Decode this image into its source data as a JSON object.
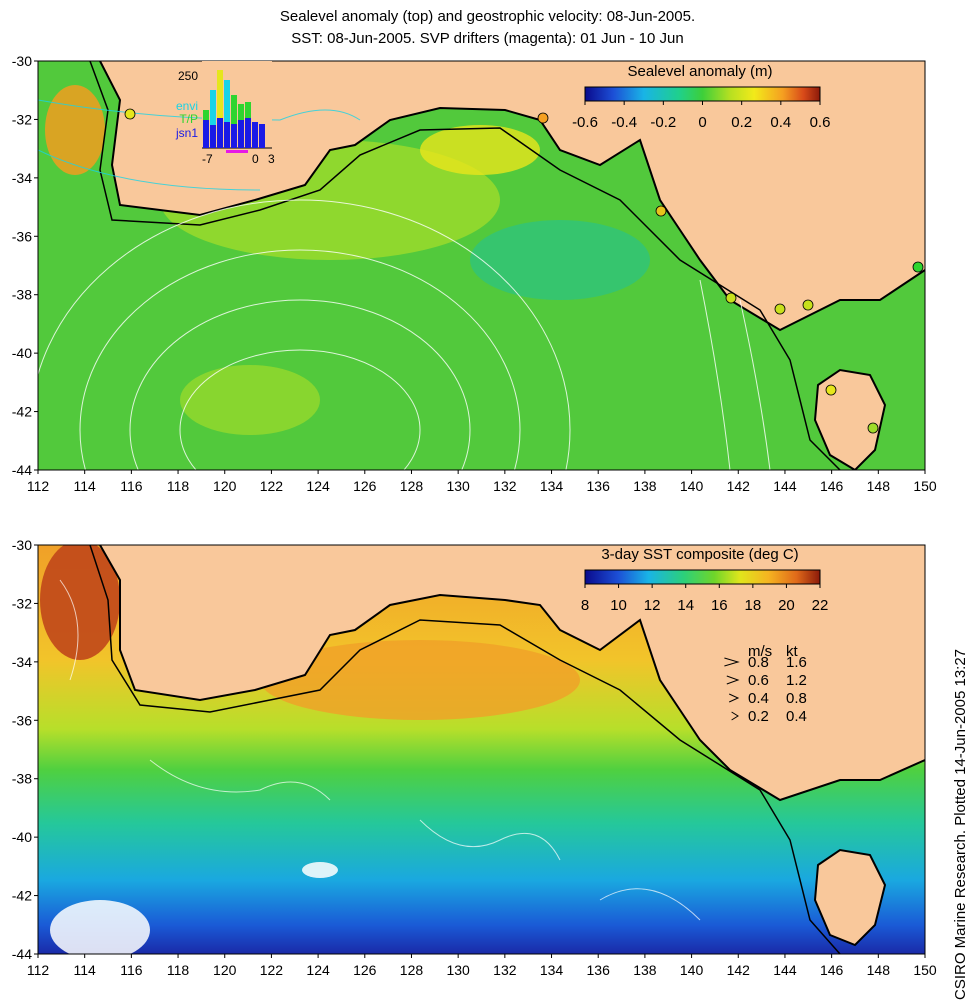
{
  "header": {
    "title_line1": "Sealevel anomaly (top) and geostrophic velocity: 08-Jun-2005.",
    "title_line2": "SST: 08-Jun-2005. SVP drifters (magenta): 01 Jun - 10 Jun"
  },
  "credit": "CSIRO Marine Research. Plotted 14-Jun-2005 13:27",
  "colors": {
    "land": "#f9c89b",
    "coast": "#000000",
    "ocean_mid": "#5ccf3a",
    "contour": "#ffffff"
  },
  "top_panel": {
    "colorbar_title": "Sealevel anomaly (m)",
    "colorbar_ticks": [
      "-0.6",
      "-0.4",
      "-0.2",
      "0",
      "0.2",
      "0.4",
      "0.6"
    ],
    "lat_ticks": [
      "-30",
      "-32",
      "-34",
      "-36",
      "-38",
      "-40",
      "-42",
      "-44"
    ],
    "lon_ticks": [
      "112",
      "114",
      "116",
      "118",
      "120",
      "122",
      "124",
      "126",
      "128",
      "130",
      "132",
      "134",
      "136",
      "138",
      "140",
      "142",
      "144",
      "146",
      "148",
      "150"
    ],
    "inset": {
      "ymax_label": "250",
      "xlabels": [
        "-7",
        "0",
        "3"
      ],
      "legend": [
        {
          "label": "envi",
          "color": "#19d3e6"
        },
        {
          "label": "T/P",
          "color": "#2fd52f"
        },
        {
          "label": "jsn1",
          "color": "#1a1ae6"
        }
      ]
    }
  },
  "bottom_panel": {
    "colorbar_title": "3-day SST composite (deg C)",
    "colorbar_ticks": [
      "8",
      "10",
      "12",
      "14",
      "16",
      "18",
      "20",
      "22"
    ],
    "lat_ticks": [
      "-30",
      "-32",
      "-34",
      "-36",
      "-38",
      "-40",
      "-42",
      "-44"
    ],
    "lon_ticks": [
      "112",
      "114",
      "116",
      "118",
      "120",
      "122",
      "124",
      "126",
      "128",
      "130",
      "132",
      "134",
      "136",
      "138",
      "140",
      "142",
      "144",
      "146",
      "148",
      "150"
    ],
    "velocity_key": {
      "header_ms": "m/s",
      "header_kt": "kt",
      "rows": [
        {
          "ms": "0.8",
          "kt": "1.6"
        },
        {
          "ms": "0.6",
          "kt": "1.2"
        },
        {
          "ms": "0.4",
          "kt": "0.8"
        },
        {
          "ms": "0.2",
          "kt": "0.4"
        }
      ]
    }
  }
}
